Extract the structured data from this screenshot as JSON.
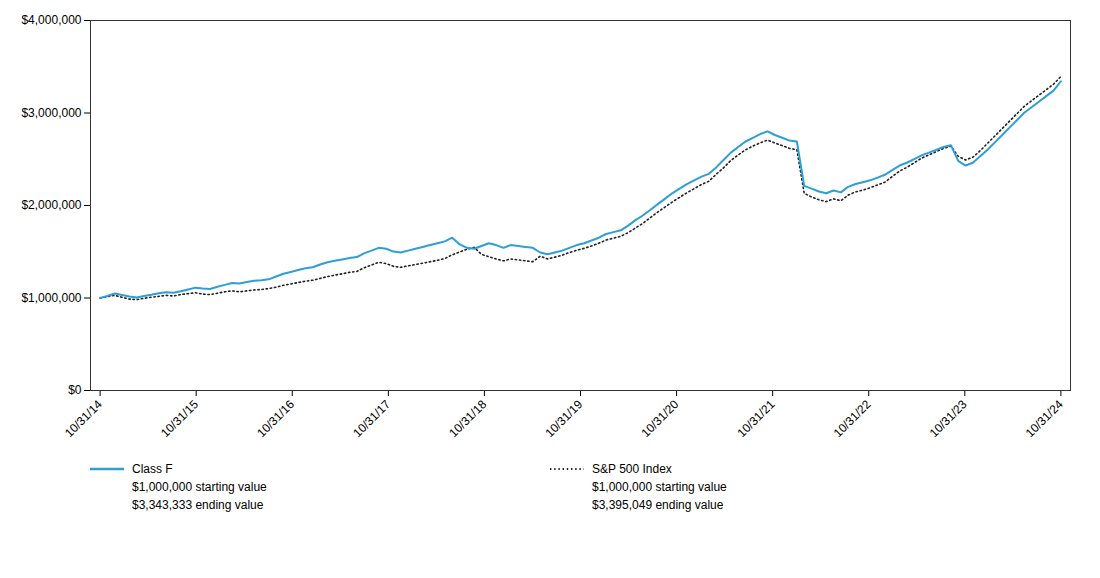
{
  "chart_data": {
    "type": "line",
    "x": [
      0,
      1,
      2,
      3,
      4,
      5,
      6,
      7,
      8,
      9,
      10,
      11,
      12,
      13,
      14,
      15,
      16,
      17,
      18,
      19,
      20,
      21,
      22,
      23,
      24,
      25,
      26,
      27,
      28,
      29,
      30,
      31,
      32,
      33,
      34,
      35,
      36,
      37,
      38,
      39,
      40,
      41,
      42,
      43,
      44,
      45,
      46,
      47,
      48,
      49,
      50,
      51,
      52,
      53,
      54,
      55,
      56,
      57,
      58,
      59,
      60,
      61,
      62,
      63,
      64,
      65,
      66,
      67,
      68,
      69,
      70,
      71,
      72,
      73,
      74,
      75,
      76,
      77,
      78,
      79,
      80,
      81,
      82,
      83,
      84,
      85,
      86,
      87,
      88,
      89,
      90,
      91,
      92,
      93,
      94,
      95,
      96,
      97,
      98,
      99,
      100,
      101,
      102,
      103,
      104,
      105,
      106,
      107,
      108,
      109,
      110,
      111,
      112,
      113,
      114,
      115,
      116,
      117,
      118,
      119,
      120,
      121,
      122,
      123,
      124,
      125,
      126,
      127,
      128,
      129,
      130,
      131
    ],
    "xlim": [
      -1.31,
      132.31
    ],
    "xticks": [
      {
        "value": 0,
        "label": "10/31/14"
      },
      {
        "value": 13.1,
        "label": "10/31/15"
      },
      {
        "value": 26.2,
        "label": "10/31/16"
      },
      {
        "value": 39.3,
        "label": "10/31/17"
      },
      {
        "value": 52.4,
        "label": "10/31/18"
      },
      {
        "value": 65.5,
        "label": "10/31/19"
      },
      {
        "value": 78.6,
        "label": "10/31/20"
      },
      {
        "value": 91.7,
        "label": "10/31/21"
      },
      {
        "value": 104.8,
        "label": "10/31/22"
      },
      {
        "value": 117.9,
        "label": "10/31/23"
      },
      {
        "value": 131,
        "label": "10/31/24"
      }
    ],
    "ylim": [
      0,
      4000000
    ],
    "yticks": [
      {
        "value": 0,
        "label": "$0"
      },
      {
        "value": 1000000,
        "label": "$1,000,000"
      },
      {
        "value": 2000000,
        "label": "$2,000,000"
      },
      {
        "value": 3000000,
        "label": "$3,000,000"
      },
      {
        "value": 4000000,
        "label": "$4,000,000"
      }
    ],
    "grid": false,
    "legend": "bottom",
    "series": [
      {
        "name": "Class F",
        "color": "#2e9fd4",
        "line_style": "solid",
        "annotations": [
          "$1,000,000 starting value",
          "$3,343,333 ending value"
        ],
        "values": [
          1000000,
          1022000,
          1048000,
          1032000,
          1016000,
          1006000,
          1022000,
          1036000,
          1052000,
          1062000,
          1057000,
          1072000,
          1092000,
          1112000,
          1102000,
          1097000,
          1122000,
          1142000,
          1162000,
          1157000,
          1172000,
          1187000,
          1192000,
          1202000,
          1232000,
          1262000,
          1282000,
          1302000,
          1322000,
          1332000,
          1362000,
          1387000,
          1402000,
          1417000,
          1432000,
          1442000,
          1482000,
          1512000,
          1542000,
          1532000,
          1502000,
          1492000,
          1512000,
          1532000,
          1552000,
          1572000,
          1592000,
          1612000,
          1652000,
          1582000,
          1542000,
          1532000,
          1562000,
          1592000,
          1572000,
          1542000,
          1572000,
          1562000,
          1552000,
          1542000,
          1492000,
          1472000,
          1492000,
          1512000,
          1542000,
          1572000,
          1592000,
          1622000,
          1652000,
          1692000,
          1712000,
          1732000,
          1782000,
          1842000,
          1892000,
          1952000,
          2012000,
          2072000,
          2132000,
          2182000,
          2232000,
          2272000,
          2312000,
          2342000,
          2412000,
          2492000,
          2572000,
          2632000,
          2692000,
          2732000,
          2772000,
          2802000,
          2762000,
          2732000,
          2702000,
          2692000,
          2212000,
          2182000,
          2152000,
          2132000,
          2162000,
          2142000,
          2202000,
          2232000,
          2252000,
          2272000,
          2302000,
          2332000,
          2382000,
          2432000,
          2462000,
          2502000,
          2542000,
          2572000,
          2602000,
          2632000,
          2652000,
          2482000,
          2432000,
          2462000,
          2532000,
          2602000,
          2682000,
          2762000,
          2842000,
          2922000,
          3002000,
          3062000,
          3122000,
          3182000,
          3242000,
          3343333
        ]
      },
      {
        "name": "S&P 500 Index",
        "color": "#222222",
        "line_style": "dotted",
        "annotations": [
          "$1,000,000 starting value",
          "$3,395,049 ending value"
        ],
        "values": [
          1000000,
          1015000,
          1028000,
          1008000,
          988000,
          982000,
          997000,
          1008000,
          1018000,
          1028000,
          1022000,
          1037000,
          1047000,
          1057000,
          1042000,
          1037000,
          1052000,
          1067000,
          1077000,
          1067000,
          1077000,
          1087000,
          1092000,
          1102000,
          1117000,
          1137000,
          1152000,
          1167000,
          1182000,
          1192000,
          1212000,
          1232000,
          1247000,
          1262000,
          1277000,
          1287000,
          1327000,
          1357000,
          1387000,
          1372000,
          1342000,
          1332000,
          1347000,
          1362000,
          1377000,
          1392000,
          1407000,
          1427000,
          1467000,
          1497000,
          1527000,
          1547000,
          1472000,
          1447000,
          1422000,
          1402000,
          1422000,
          1412000,
          1402000,
          1392000,
          1452000,
          1422000,
          1442000,
          1462000,
          1492000,
          1517000,
          1537000,
          1562000,
          1592000,
          1627000,
          1647000,
          1667000,
          1707000,
          1757000,
          1807000,
          1867000,
          1927000,
          1982000,
          2037000,
          2087000,
          2137000,
          2182000,
          2227000,
          2262000,
          2337000,
          2407000,
          2487000,
          2547000,
          2602000,
          2642000,
          2677000,
          2707000,
          2677000,
          2647000,
          2617000,
          2602000,
          2132000,
          2092000,
          2062000,
          2042000,
          2072000,
          2052000,
          2112000,
          2147000,
          2167000,
          2192000,
          2222000,
          2252000,
          2312000,
          2372000,
          2412000,
          2462000,
          2512000,
          2547000,
          2582000,
          2617000,
          2642000,
          2532000,
          2492000,
          2522000,
          2592000,
          2672000,
          2752000,
          2832000,
          2912000,
          2992000,
          3072000,
          3132000,
          3192000,
          3252000,
          3312000,
          3395049
        ]
      }
    ]
  }
}
